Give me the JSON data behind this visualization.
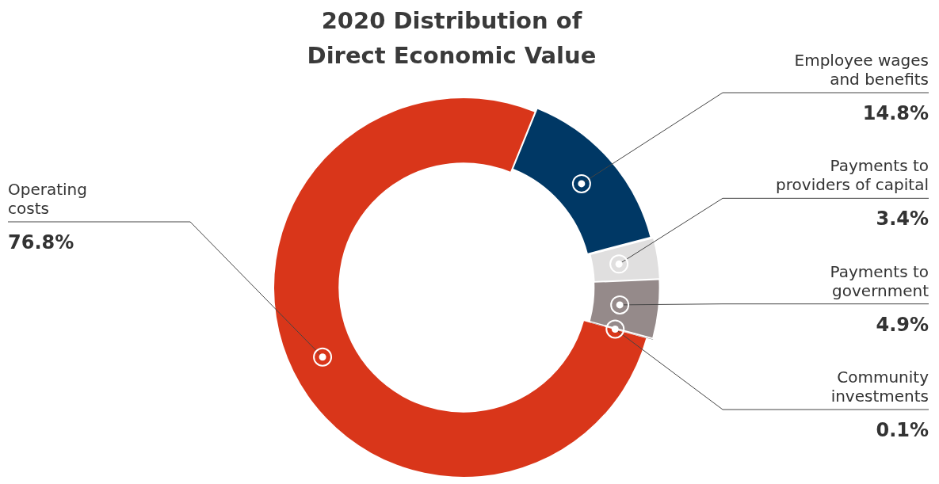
{
  "chart_data": {
    "type": "donut",
    "title": "2020 Distribution of Direct Economic Value",
    "categories": [
      "Employee wages and benefits",
      "Payments to providers of capital",
      "Payments to government",
      "Community investments",
      "Operating costs"
    ],
    "values": [
      14.8,
      3.4,
      4.9,
      0.1,
      76.8
    ],
    "colors": [
      "#003865",
      "#e0dfdf",
      "#958a8a",
      "#111111",
      "#d9361a"
    ],
    "value_labels": [
      "14.8%",
      "3.4%",
      "4.9%",
      "0.1%",
      "76.8%"
    ],
    "legend": false
  }
}
